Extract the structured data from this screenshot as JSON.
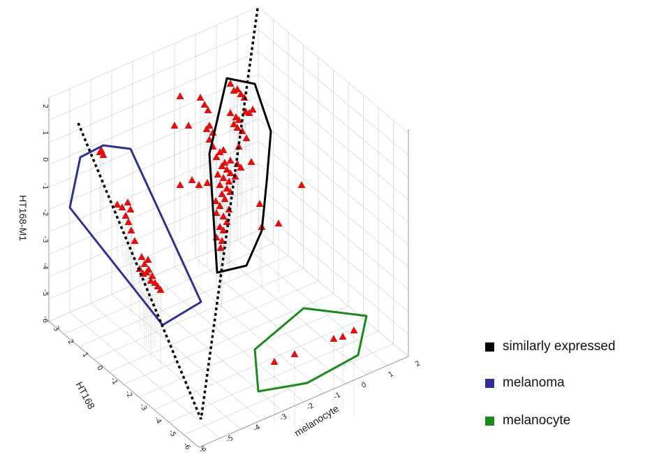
{
  "chart_data": {
    "type": "scatter",
    "projection": "3d",
    "title": "",
    "zlabel": "HT168-M1",
    "ylabel": "HT168",
    "xlabel": "melanocyte",
    "z_ticks": [
      "2",
      "1",
      "0",
      "-1",
      "-2",
      "-3",
      "-4",
      "-5",
      "-6"
    ],
    "y_ticks": [
      "3",
      "2",
      "1",
      "0",
      "-1",
      "-2",
      "-3",
      "-4",
      "-5",
      "-6"
    ],
    "x_ticks": [
      "-6",
      "-5",
      "-4",
      "-3",
      "-2",
      "-1",
      "0",
      "1",
      "2"
    ],
    "grid": true,
    "marker": "triangle",
    "marker_color": "#e01010",
    "legend_position": "right",
    "groups": [
      {
        "name": "similarly expressed",
        "color": "#000000",
        "outline": "polygon"
      },
      {
        "name": "melanoma",
        "color": "#2e3192",
        "outline": "polygon"
      },
      {
        "name": "melanocyte",
        "color": "#1a8a1a",
        "outline": "polygon"
      }
    ],
    "reference_lines": [
      {
        "style": "dotted",
        "color": "#000000"
      },
      {
        "style": "dotted",
        "color": "#000000"
      }
    ]
  },
  "legend": {
    "items": [
      {
        "label": "similarly expressed",
        "color": "#000000"
      },
      {
        "label": "melanoma",
        "color": "#2e3192"
      },
      {
        "label": "melanocyte",
        "color": "#1a8a1a"
      }
    ]
  }
}
